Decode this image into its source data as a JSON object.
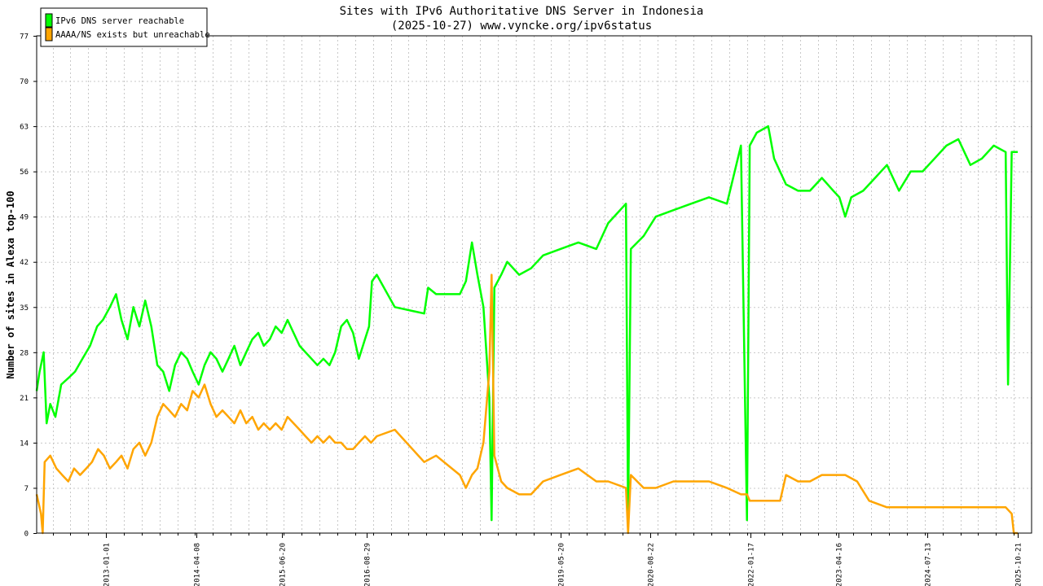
{
  "chart_data": {
    "type": "line",
    "title": "Sites with IPv6 Authoritative DNS Server in Indonesia",
    "subtitle": "(2025-10-27) www.vyncke.org/ipv6status",
    "xlabel": "",
    "ylabel": "Number of sites in Alexa top-100",
    "ylim": [
      0,
      77
    ],
    "y_ticks": [
      0,
      7,
      14,
      21,
      28,
      35,
      42,
      49,
      56,
      63,
      70,
      77
    ],
    "xlim": [
      "2012-01-10",
      "2025-12-31"
    ],
    "x_ticks": [
      "2013-01-01",
      "2014-04-08",
      "2015-06-20",
      "2016-08-29",
      "2019-05-20",
      "2020-08-22",
      "2022-01-17",
      "2023-04-16",
      "2024-07-13",
      "2025-10-21"
    ],
    "grid": true,
    "legend_position": "top-left",
    "series": [
      {
        "name": "IPv6 DNS server reachable",
        "color": "#00ff00",
        "points": [
          [
            "2012-01-10",
            22
          ],
          [
            "2012-01-25",
            25
          ],
          [
            "2012-02-15",
            28
          ],
          [
            "2012-03-01",
            17
          ],
          [
            "2012-03-20",
            20
          ],
          [
            "2012-04-15",
            18
          ],
          [
            "2012-05-15",
            23
          ],
          [
            "2012-06-20",
            24
          ],
          [
            "2012-07-25",
            25
          ],
          [
            "2012-09-01",
            27
          ],
          [
            "2012-10-10",
            29
          ],
          [
            "2012-11-15",
            32
          ],
          [
            "2012-12-15",
            33
          ],
          [
            "2013-01-20",
            35
          ],
          [
            "2013-02-20",
            37
          ],
          [
            "2013-03-20",
            33
          ],
          [
            "2013-04-20",
            30
          ],
          [
            "2013-05-20",
            35
          ],
          [
            "2013-06-20",
            32
          ],
          [
            "2013-07-20",
            36
          ],
          [
            "2013-08-20",
            32
          ],
          [
            "2013-09-20",
            26
          ],
          [
            "2013-10-20",
            25
          ],
          [
            "2013-11-20",
            22
          ],
          [
            "2013-12-20",
            26
          ],
          [
            "2014-01-20",
            28
          ],
          [
            "2014-02-20",
            27
          ],
          [
            "2014-03-20",
            25
          ],
          [
            "2014-04-20",
            23
          ],
          [
            "2014-05-20",
            26
          ],
          [
            "2014-06-20",
            28
          ],
          [
            "2014-07-20",
            27
          ],
          [
            "2014-08-20",
            25
          ],
          [
            "2014-09-20",
            27
          ],
          [
            "2014-10-20",
            29
          ],
          [
            "2014-11-20",
            26
          ],
          [
            "2014-12-20",
            28
          ],
          [
            "2015-01-20",
            30
          ],
          [
            "2015-02-20",
            31
          ],
          [
            "2015-03-20",
            29
          ],
          [
            "2015-04-20",
            30
          ],
          [
            "2015-05-20",
            32
          ],
          [
            "2015-06-20",
            31
          ],
          [
            "2015-07-20",
            33
          ],
          [
            "2015-08-20",
            31
          ],
          [
            "2015-09-20",
            29
          ],
          [
            "2015-10-20",
            28
          ],
          [
            "2015-11-20",
            27
          ],
          [
            "2015-12-20",
            26
          ],
          [
            "2016-01-20",
            27
          ],
          [
            "2016-02-20",
            26
          ],
          [
            "2016-03-20",
            28
          ],
          [
            "2016-04-20",
            32
          ],
          [
            "2016-05-20",
            33
          ],
          [
            "2016-06-20",
            31
          ],
          [
            "2016-07-20",
            27
          ],
          [
            "2016-08-20",
            30
          ],
          [
            "2016-09-10",
            32
          ],
          [
            "2016-09-25",
            39
          ],
          [
            "2016-10-20",
            40
          ],
          [
            "2017-01-20",
            35
          ],
          [
            "2017-06-20",
            34
          ],
          [
            "2017-07-10",
            38
          ],
          [
            "2017-08-20",
            37
          ],
          [
            "2017-12-20",
            37
          ],
          [
            "2018-01-20",
            39
          ],
          [
            "2018-02-20",
            45
          ],
          [
            "2018-03-20",
            40
          ],
          [
            "2018-04-20",
            35
          ],
          [
            "2018-05-20",
            21
          ],
          [
            "2018-06-01",
            2
          ],
          [
            "2018-06-15",
            38
          ],
          [
            "2018-07-20",
            40
          ],
          [
            "2018-08-20",
            42
          ],
          [
            "2018-10-20",
            40
          ],
          [
            "2018-12-20",
            41
          ],
          [
            "2019-02-20",
            43
          ],
          [
            "2019-05-20",
            44
          ],
          [
            "2019-08-20",
            45
          ],
          [
            "2019-11-20",
            44
          ],
          [
            "2020-01-20",
            48
          ],
          [
            "2020-04-20",
            51
          ],
          [
            "2020-05-01",
            2
          ],
          [
            "2020-05-15",
            44
          ],
          [
            "2020-07-20",
            46
          ],
          [
            "2020-09-20",
            49
          ],
          [
            "2020-12-20",
            50
          ],
          [
            "2021-03-20",
            51
          ],
          [
            "2021-06-20",
            52
          ],
          [
            "2021-09-20",
            51
          ],
          [
            "2021-12-01",
            60
          ],
          [
            "2022-01-01",
            2
          ],
          [
            "2022-01-15",
            60
          ],
          [
            "2022-02-20",
            62
          ],
          [
            "2022-04-20",
            63
          ],
          [
            "2022-05-20",
            58
          ],
          [
            "2022-07-20",
            54
          ],
          [
            "2022-09-20",
            53
          ],
          [
            "2022-11-20",
            53
          ],
          [
            "2023-01-20",
            55
          ],
          [
            "2023-03-20",
            53
          ],
          [
            "2023-04-20",
            52
          ],
          [
            "2023-05-20",
            49
          ],
          [
            "2023-06-20",
            52
          ],
          [
            "2023-08-20",
            53
          ],
          [
            "2023-10-20",
            55
          ],
          [
            "2023-12-20",
            57
          ],
          [
            "2024-02-20",
            53
          ],
          [
            "2024-04-20",
            56
          ],
          [
            "2024-06-20",
            56
          ],
          [
            "2024-08-20",
            58
          ],
          [
            "2024-10-20",
            60
          ],
          [
            "2024-12-20",
            61
          ],
          [
            "2025-02-20",
            57
          ],
          [
            "2025-04-20",
            58
          ],
          [
            "2025-06-20",
            60
          ],
          [
            "2025-08-20",
            59
          ],
          [
            "2025-09-01",
            23
          ],
          [
            "2025-09-20",
            59
          ],
          [
            "2025-10-21",
            59
          ]
        ]
      },
      {
        "name": "AAAA/NS exists but unreachable",
        "color": "#ffa500",
        "points": [
          [
            "2012-01-10",
            6
          ],
          [
            "2012-02-01",
            3
          ],
          [
            "2012-02-10",
            0
          ],
          [
            "2012-02-20",
            11
          ],
          [
            "2012-03-20",
            12
          ],
          [
            "2012-04-20",
            10
          ],
          [
            "2012-05-20",
            9
          ],
          [
            "2012-06-20",
            8
          ],
          [
            "2012-07-20",
            10
          ],
          [
            "2012-08-20",
            9
          ],
          [
            "2012-09-20",
            10
          ],
          [
            "2012-10-20",
            11
          ],
          [
            "2012-11-20",
            13
          ],
          [
            "2012-12-20",
            12
          ],
          [
            "2013-01-20",
            10
          ],
          [
            "2013-02-20",
            11
          ],
          [
            "2013-03-20",
            12
          ],
          [
            "2013-04-20",
            10
          ],
          [
            "2013-05-20",
            13
          ],
          [
            "2013-06-20",
            14
          ],
          [
            "2013-07-20",
            12
          ],
          [
            "2013-08-20",
            14
          ],
          [
            "2013-09-20",
            18
          ],
          [
            "2013-10-20",
            20
          ],
          [
            "2013-11-20",
            19
          ],
          [
            "2013-12-20",
            18
          ],
          [
            "2014-01-20",
            20
          ],
          [
            "2014-02-20",
            19
          ],
          [
            "2014-03-20",
            22
          ],
          [
            "2014-04-20",
            21
          ],
          [
            "2014-05-20",
            23
          ],
          [
            "2014-06-20",
            20
          ],
          [
            "2014-07-20",
            18
          ],
          [
            "2014-08-20",
            19
          ],
          [
            "2014-09-20",
            18
          ],
          [
            "2014-10-20",
            17
          ],
          [
            "2014-11-20",
            19
          ],
          [
            "2014-12-20",
            17
          ],
          [
            "2015-01-20",
            18
          ],
          [
            "2015-02-20",
            16
          ],
          [
            "2015-03-20",
            17
          ],
          [
            "2015-04-20",
            16
          ],
          [
            "2015-05-20",
            17
          ],
          [
            "2015-06-20",
            16
          ],
          [
            "2015-07-20",
            18
          ],
          [
            "2015-08-20",
            17
          ],
          [
            "2015-09-20",
            16
          ],
          [
            "2015-10-20",
            15
          ],
          [
            "2015-11-20",
            14
          ],
          [
            "2015-12-20",
            15
          ],
          [
            "2016-01-20",
            14
          ],
          [
            "2016-02-20",
            15
          ],
          [
            "2016-03-20",
            14
          ],
          [
            "2016-04-20",
            14
          ],
          [
            "2016-05-20",
            13
          ],
          [
            "2016-06-20",
            13
          ],
          [
            "2016-07-20",
            14
          ],
          [
            "2016-08-20",
            15
          ],
          [
            "2016-09-20",
            14
          ],
          [
            "2016-10-20",
            15
          ],
          [
            "2017-01-20",
            16
          ],
          [
            "2017-06-20",
            11
          ],
          [
            "2017-08-20",
            12
          ],
          [
            "2017-12-20",
            9
          ],
          [
            "2018-01-20",
            7
          ],
          [
            "2018-02-20",
            9
          ],
          [
            "2018-03-20",
            10
          ],
          [
            "2018-04-20",
            14
          ],
          [
            "2018-05-20",
            25
          ],
          [
            "2018-06-01",
            40
          ],
          [
            "2018-06-15",
            12
          ],
          [
            "2018-07-20",
            8
          ],
          [
            "2018-08-20",
            7
          ],
          [
            "2018-10-20",
            6
          ],
          [
            "2018-12-20",
            6
          ],
          [
            "2019-02-20",
            8
          ],
          [
            "2019-05-20",
            9
          ],
          [
            "2019-08-20",
            10
          ],
          [
            "2019-11-20",
            8
          ],
          [
            "2020-01-20",
            8
          ],
          [
            "2020-04-20",
            7
          ],
          [
            "2020-05-01",
            0
          ],
          [
            "2020-05-15",
            9
          ],
          [
            "2020-07-20",
            7
          ],
          [
            "2020-09-20",
            7
          ],
          [
            "2020-12-20",
            8
          ],
          [
            "2021-03-20",
            8
          ],
          [
            "2021-06-20",
            8
          ],
          [
            "2021-09-20",
            7
          ],
          [
            "2021-12-01",
            6
          ],
          [
            "2022-01-01",
            6
          ],
          [
            "2022-01-15",
            5
          ],
          [
            "2022-04-20",
            5
          ],
          [
            "2022-06-20",
            5
          ],
          [
            "2022-07-20",
            9
          ],
          [
            "2022-09-20",
            8
          ],
          [
            "2022-11-20",
            8
          ],
          [
            "2023-01-20",
            9
          ],
          [
            "2023-03-20",
            9
          ],
          [
            "2023-05-20",
            9
          ],
          [
            "2023-07-20",
            8
          ],
          [
            "2023-09-20",
            5
          ],
          [
            "2023-12-20",
            4
          ],
          [
            "2024-04-20",
            4
          ],
          [
            "2024-08-20",
            4
          ],
          [
            "2024-12-20",
            4
          ],
          [
            "2025-04-20",
            4
          ],
          [
            "2025-08-20",
            4
          ],
          [
            "2025-09-20",
            3
          ],
          [
            "2025-10-01",
            0
          ],
          [
            "2025-10-21",
            0
          ]
        ]
      }
    ]
  }
}
